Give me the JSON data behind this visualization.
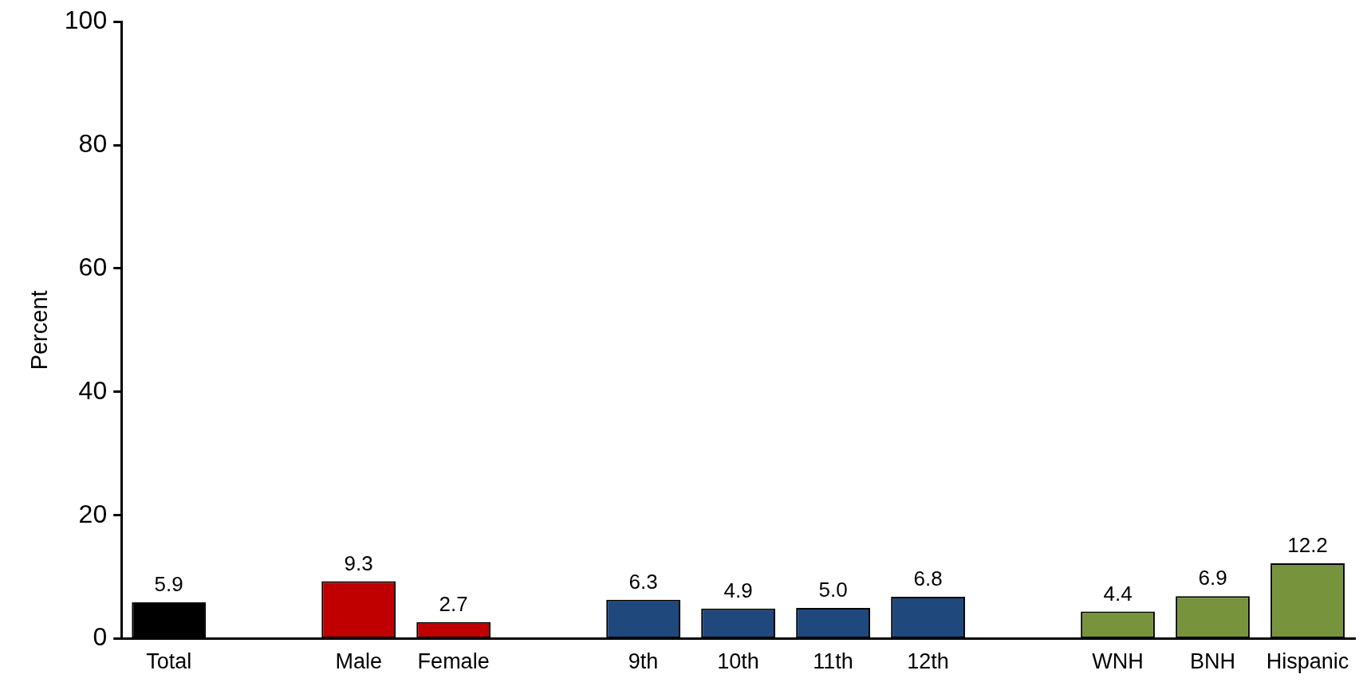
{
  "chart_data": {
    "type": "bar",
    "ylabel": "Percent",
    "categories": [
      "Total",
      null,
      "Male",
      "Female",
      null,
      "9th",
      "10th",
      "11th",
      "12th",
      null,
      "WNH",
      "BNH",
      "Hispanic"
    ],
    "values": [
      5.9,
      null,
      9.3,
      2.7,
      null,
      6.3,
      4.9,
      5.0,
      6.8,
      null,
      4.4,
      6.9,
      12.2
    ],
    "value_labels": [
      "5.9",
      null,
      "9.3",
      "2.7",
      null,
      "6.3",
      "4.9",
      "5.0",
      "6.8",
      null,
      "4.4",
      "6.9",
      "12.2"
    ],
    "colors": [
      "#000000",
      null,
      "#c00000",
      "#c00000",
      null,
      "#1f497d",
      "#1f497d",
      "#1f497d",
      "#1f497d",
      null,
      "#77933c",
      "#77933c",
      "#77933c"
    ],
    "ylim": [
      0,
      100
    ],
    "yticks": [
      0,
      20,
      40,
      60,
      80,
      100
    ],
    "grid": false,
    "legend": false
  }
}
